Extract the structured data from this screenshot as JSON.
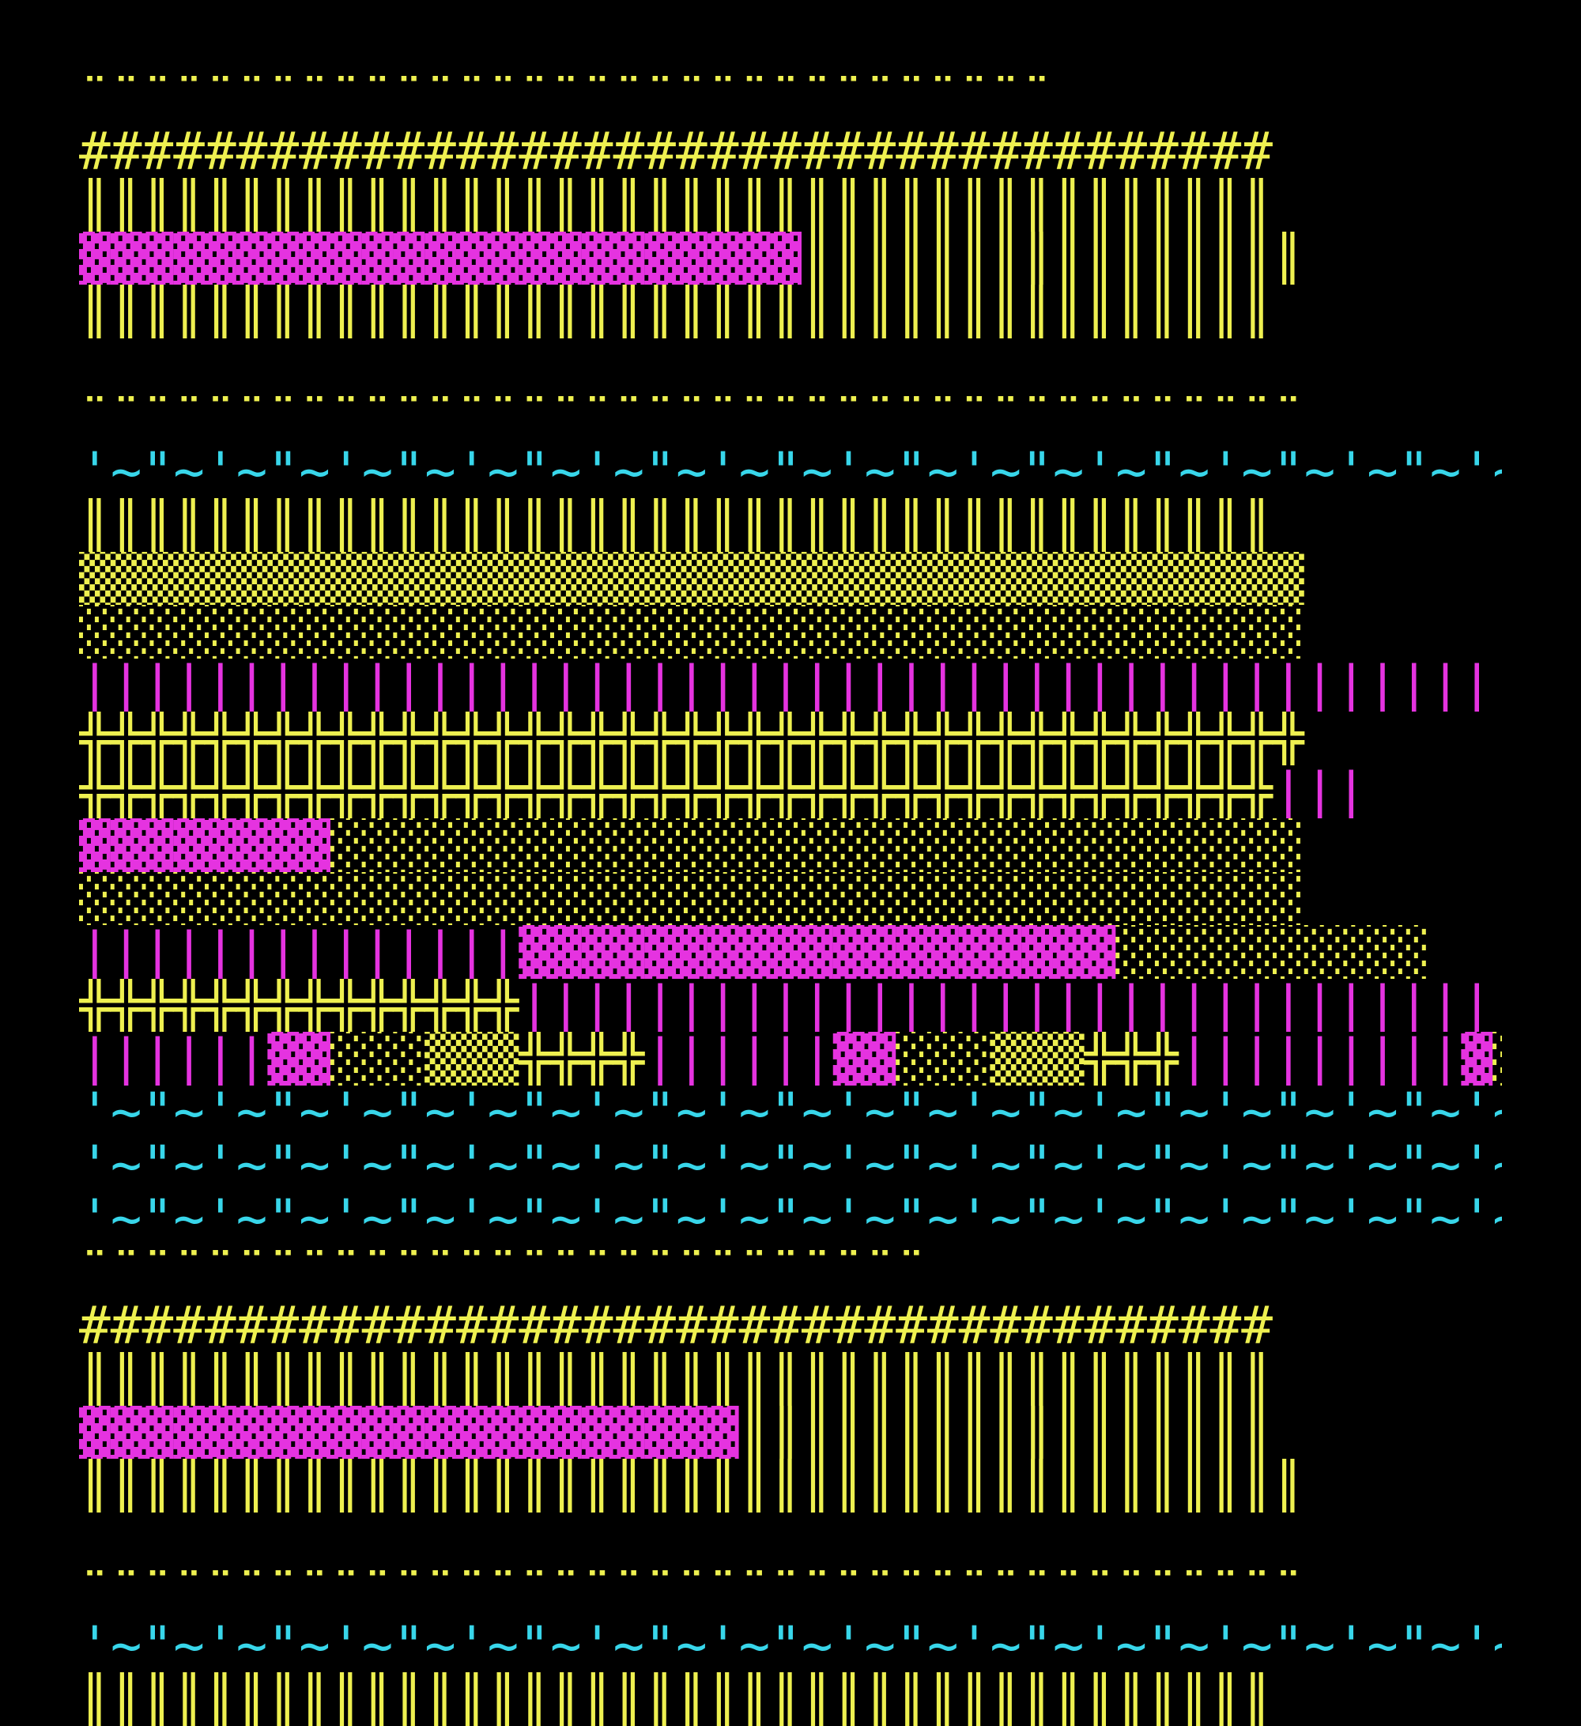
{
  "palette": {
    "background": "#000000",
    "yellow": "#eef050",
    "magenta": "#e533e0",
    "cyan": "#38d6ea"
  },
  "rows": [
    [
      {
        "c": "y",
        "t": "¨¨¨¨¨¨¨¨¨¨¨¨¨¨¨¨¨¨¨¨¨¨¨¨¨¨¨¨¨¨¨"
      }
    ],
    [
      {
        "c": "y",
        "t": "######################################"
      }
    ],
    [
      {
        "c": "y",
        "t": "║║║║║║║║║║║║║║║║║║║║║║║║║║║║║║║║║║║║║║"
      }
    ],
    [
      {
        "c": "m",
        "t": "▓▓▓▓▓▓▓▓▓▓▓▓▓▓▓▓▓▓▓▓▓▓▓"
      },
      {
        "c": "y",
        "t": "║║║║║║║║║║║║║║║║"
      }
    ],
    [
      {
        "c": "y",
        "t": "║║║║║║║║║║║║║║║║║║║║║║║║║║║║║║║║║║║║║║"
      }
    ],
    [
      {
        "c": "y",
        "t": " "
      }
    ],
    [
      {
        "c": "y",
        "t": "¨¨¨¨¨¨¨¨¨¨¨¨¨¨¨¨¨¨¨¨¨¨¨¨¨¨¨¨¨¨¨¨¨¨¨¨¨¨¨"
      }
    ],
    [
      {
        "c": "c",
        "t": "'~\"~'~\"~'~\"~'~\"~'~\"~'~\"~'~\"~'~\"~'~\"~'~\"~'~\"~'~\"~'~\"~'~\"~'~\"~'~\"~'~\"~'~\"~'~\"~"
      }
    ],
    [
      {
        "c": "y",
        "t": "║║║║║║║║║║║║║║║║║║║║║║║║║║║║║║║║║║║║║║"
      }
    ],
    [
      {
        "c": "y",
        "t": "▒▒▒▒▒▒▒▒▒▒▒▒▒▒▒▒▒▒▒▒▒▒▒▒▒▒▒▒▒▒▒▒▒▒▒▒▒▒▒"
      }
    ],
    [
      {
        "c": "y",
        "t": "░░░░░░░░░░░░░░░░░░░░░░░░░░░░░░░░░░░░░░░"
      }
    ],
    [
      {
        "c": "m",
        "t": "|||||||||||||||||||||||||||||||||||||||||||||||||||||||||||||||"
      }
    ],
    [
      {
        "c": "y",
        "t": "╬╬╬╬╬╬╬╬╬╬╬╬╬╬╬╬╬╬╬╬╬╬╬╬╬╬╬╬╬╬╬╬╬╬╬╬╬╬╬"
      }
    ],
    [
      {
        "c": "y",
        "t": "╬╬╬╬╬╬╬╬╬╬╬╬╬╬╬╬╬╬╬╬╬╬╬╬╬╬╬╬╬╬╬╬╬╬╬╬╬╬"
      },
      {
        "c": "m",
        "t": "|||"
      }
    ],
    [
      {
        "c": "m",
        "t": "▓▓▓▓▓▓▓▓"
      },
      {
        "c": "y",
        "t": "░░░░░░░░░░░░░░░░░░░░░░░░░░░░░░░"
      }
    ],
    [
      {
        "c": "y",
        "t": "░░░░░░░░░░░░░░░░░░░░░░░░░░░░░░░░░░░░░░░"
      }
    ],
    [
      {
        "c": "m",
        "t": "||||||||||||||"
      },
      {
        "c": "m",
        "t": "▓▓▓▓▓▓▓▓▓▓▓▓▓▓▓▓▓▓▓"
      },
      {
        "c": "y",
        "t": "░░░░░░░░░░"
      }
    ],
    [
      {
        "c": "y",
        "t": "╬╬╬╬╬╬╬╬╬╬╬╬╬╬"
      },
      {
        "c": "m",
        "t": "||||||||||||||||||||||||||||||||||||||||||"
      },
      {
        "c": "m",
        "t": "▓▓▓"
      }
    ],
    [
      {
        "c": "m",
        "t": "||||||"
      },
      {
        "c": "m",
        "t": "▓▓"
      },
      {
        "c": "y",
        "t": "░░░▒▒▒╬╬╬╬"
      },
      {
        "c": "m",
        "t": "||||||"
      },
      {
        "c": "m",
        "t": "▓▓"
      },
      {
        "c": "y",
        "t": "░░░▒▒▒╬╬╬"
      },
      {
        "c": "m",
        "t": "|||||||||"
      },
      {
        "c": "m",
        "t": "▓"
      },
      {
        "c": "y",
        "t": "░"
      }
    ],
    [
      {
        "c": "c",
        "t": "'~\"~'~\"~'~\"~'~\"~'~\"~'~\"~'~\"~'~\"~'~\"~'~\"~'~\"~'~\"~'~\"~'~\"~'~\"~"
      },
      {
        "c": "y",
        "t": "#############"
      },
      {
        "c": "m",
        "t": "▓▓▓▓▓▓▓"
      },
      {
        "c": "y",
        "t": "║║║║║"
      }
    ],
    [
      {
        "c": "c",
        "t": "'~\"~'~\"~'~\"~'~\"~'~\"~'~\"~'~\"~'~\"~'~\"~'~\"~'~\"~'~\"~'~\"~'~\"~'~\"~'~\"~'~\"~'~\"~'~\"~'~\"~'~\"~'~\"~'~\"~'~\"~"
      },
      {
        "c": "y",
        "t": "######################"
      }
    ],
    [
      {
        "c": "c",
        "t": "'~\"~'~\"~'~\"~'~\"~'~\"~'~\"~'~\"~'~\"~'~\"~'~\"~'~\"~'~\"~'~\"~"
      }
    ],
    [
      {
        "c": "y",
        "t": "¨¨¨¨¨¨¨¨¨¨¨¨¨¨¨¨¨¨¨¨¨¨¨¨¨¨¨"
      }
    ],
    [
      {
        "c": "y",
        "t": "######################################"
      }
    ],
    [
      {
        "c": "y",
        "t": "║║║║║║║║║║║║║║║║║║║║║║║║║║║║║║║║║║║║║║"
      }
    ],
    [
      {
        "c": "m",
        "t": "▓▓▓▓▓▓▓▓▓▓▓▓▓▓▓▓▓▓▓▓▓"
      },
      {
        "c": "y",
        "t": "║║║║║║║║║║║║║║║║║"
      }
    ],
    [
      {
        "c": "y",
        "t": "║║║║║║║║║║║║║║║║║║║║║║║║║║║║║║║║║║║║║║║"
      }
    ],
    [
      {
        "c": "y",
        "t": " "
      }
    ],
    [
      {
        "c": "y",
        "t": "¨¨¨¨¨¨¨¨¨¨¨¨¨¨¨¨¨¨¨¨¨¨¨¨¨¨¨¨¨¨¨¨¨¨¨¨¨¨¨"
      }
    ],
    [
      {
        "c": "c",
        "t": "'~\"~'~\"~'~\"~'~\"~'~\"~'~\"~'~\"~'~\"~'~\"~'~\"~'~\"~'~\"~'~\"~'~\"~'~\"~'~\"~'~\"~'~\"~'~\"~"
      }
    ],
    [
      {
        "c": "y",
        "t": "║║║║║║║║║║║║║║║║║║║║║║║║║║║║║║║║║║║║║║"
      }
    ]
  ]
}
